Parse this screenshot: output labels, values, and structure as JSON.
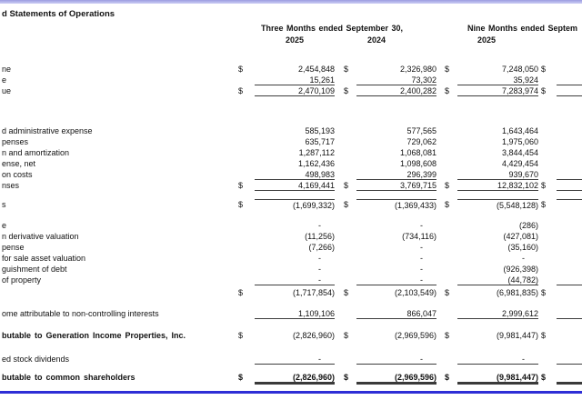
{
  "title": "d Statements of Operations",
  "header": {
    "three_months": "Three Months ended September 30,",
    "three_months_year_1": "2025",
    "three_months_year_2": "2024",
    "nine_months": "Nine Months ended Septem",
    "nine_months_year_1": "2025"
  },
  "table": {
    "currency": "$",
    "dash": "-",
    "rows": [
      {
        "label": "ne",
        "values": [
          "2,454,848",
          "2,326,980",
          "7,248,050"
        ],
        "dollar": true
      },
      {
        "label": "e",
        "values": [
          "15,261",
          "73,302",
          "35,924"
        ],
        "underline": true
      },
      {
        "label": "ue",
        "values": [
          "2,470,109",
          "2,400,282",
          "7,283,974"
        ],
        "dollar": true,
        "underline": true
      },
      {
        "label": "d administrative expense",
        "values": [
          "585,193",
          "577,565",
          "1,643,464"
        ],
        "mt": 32
      },
      {
        "label": "penses",
        "values": [
          "635,717",
          "729,062",
          "1,975,060"
        ]
      },
      {
        "label": "n and amortization",
        "values": [
          "1,287,112",
          "1,068,081",
          "3,844,454"
        ]
      },
      {
        "label": "ense, net",
        "values": [
          "1,162,436",
          "1,098,608",
          "4,429,454"
        ]
      },
      {
        "label": "on costs",
        "values": [
          "498,983",
          "296,399",
          "939,670"
        ],
        "underline": true
      },
      {
        "label": "nses",
        "values": [
          "4,169,441",
          "3,769,715",
          "12,832,102"
        ],
        "dollar": true,
        "underline": true
      },
      {
        "label": "s",
        "values": [
          "(1,699,332)",
          "(1,369,433)",
          "(5,548,128)"
        ],
        "dollar": true,
        "overline": true,
        "mt": 9
      },
      {
        "label": "e",
        "values": [
          "-",
          "-",
          "(286)"
        ],
        "mt": 11
      },
      {
        "label": "n derivative valuation",
        "values": [
          "(11,256)",
          "(734,116)",
          "(427,081)"
        ]
      },
      {
        "label": "pense",
        "values": [
          "(7,266)",
          "-",
          "(35,160)"
        ]
      },
      {
        "label": "for sale asset valuation",
        "values": [
          "-",
          "-",
          "-"
        ]
      },
      {
        "label": "guishment of debt",
        "values": [
          "-",
          "-",
          "(926,398)"
        ]
      },
      {
        "label": "of property",
        "values": [
          "-",
          "-",
          "(44,782)"
        ],
        "underline": true
      },
      {
        "label": "",
        "values": [
          "(1,717,854)",
          "(2,103,549)",
          "(6,981,835)"
        ],
        "dollar": true,
        "mt": 2
      },
      {
        "label": "ome attributable to non-controlling interests",
        "values": [
          "1,109,106",
          "866,047",
          "2,999,612"
        ],
        "underline": true,
        "mt": 11
      },
      {
        "label": "butable to Generation Income Properties, Inc.",
        "values": [
          "(2,826,960)",
          "(2,969,596)",
          "(9,981,447)"
        ],
        "dollar": true,
        "bold_label": true,
        "mt": 12
      },
      {
        "label": "ed stock dividends",
        "values": [
          "-",
          "-",
          "-"
        ],
        "underline": true,
        "mt": 14
      },
      {
        "label": "butable to common shareholders",
        "values": [
          "(2,826,960)",
          "(2,969,596)",
          "(9,981,447)"
        ],
        "dollar": true,
        "bold_label": true,
        "bold_values": true,
        "double_rule": true,
        "mt": 8
      }
    ]
  }
}
